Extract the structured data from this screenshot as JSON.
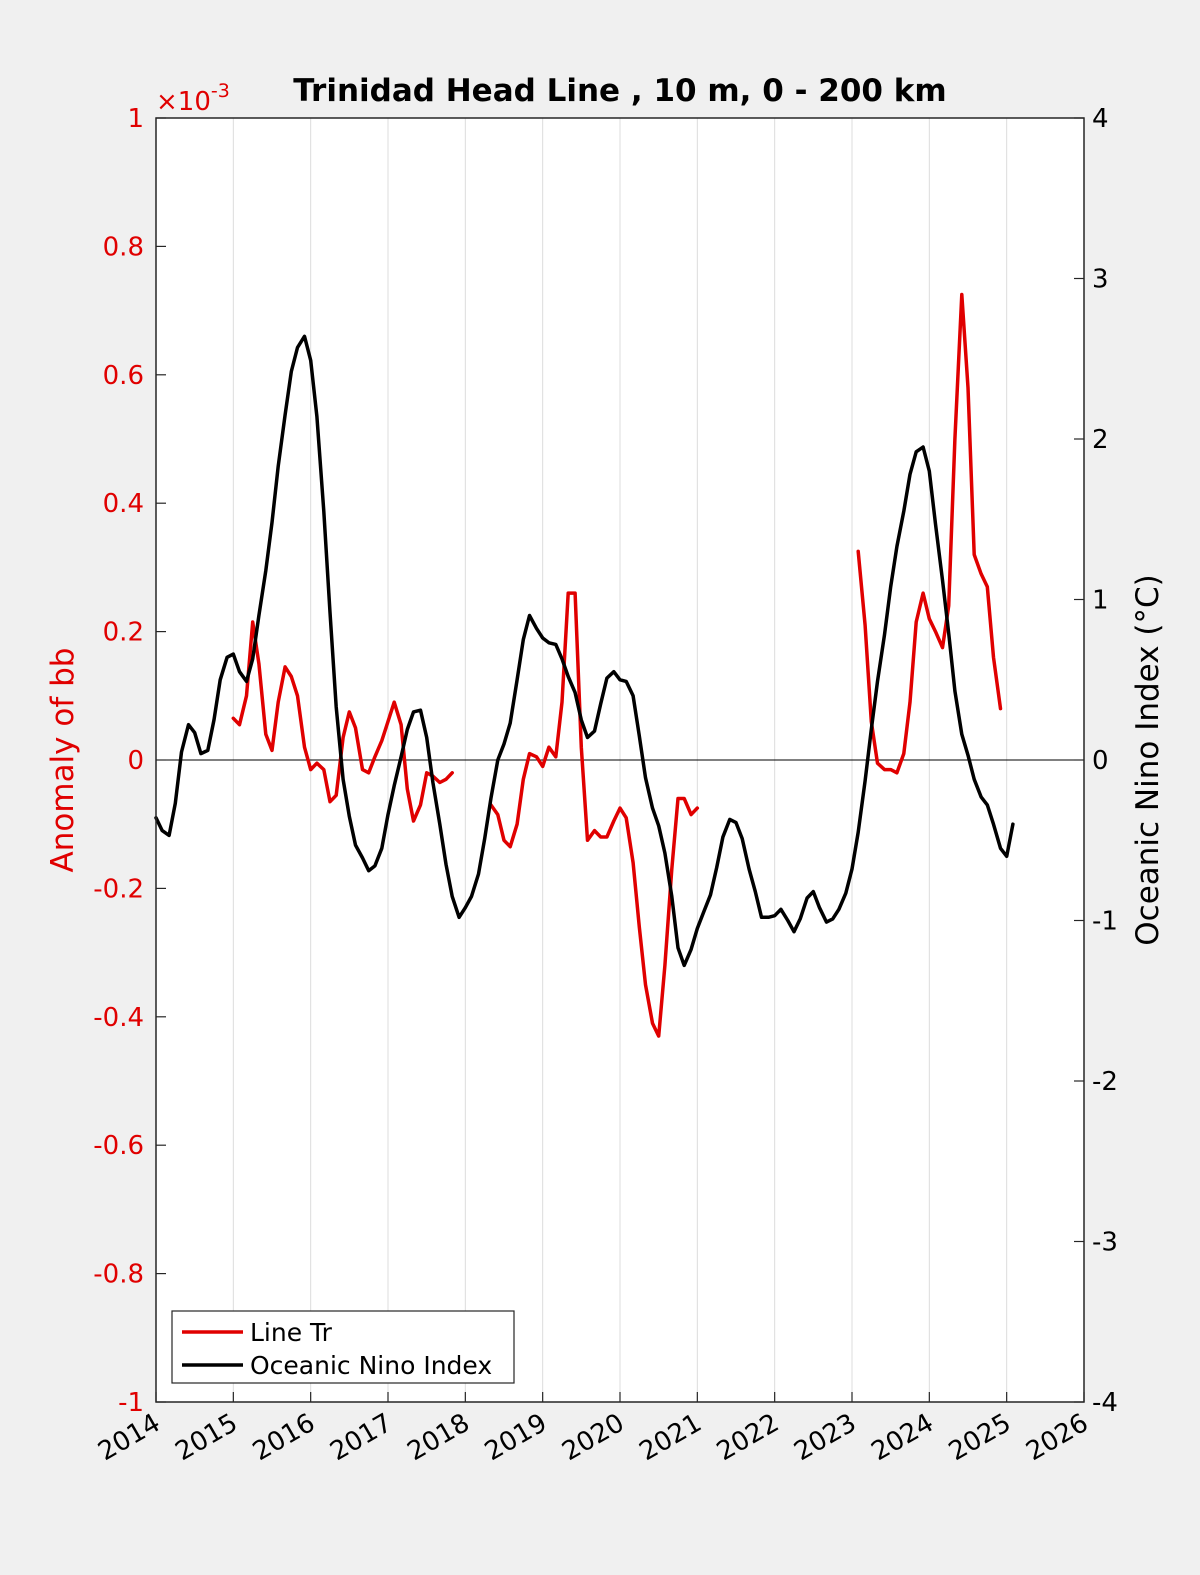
{
  "chart_data": {
    "type": "line",
    "title": "Trinidad Head Line , 10 m, 0 - 200 km",
    "ylabel_left": "Anomaly of bb",
    "ylabel_right": "Oceanic Nino Index (°C)",
    "left_exponent_base": "×10",
    "left_exponent_power": "-3",
    "xlim": [
      2014,
      2026
    ],
    "ylim_left": [
      -1,
      1
    ],
    "ylim_right": [
      -4,
      4
    ],
    "x_ticks": [
      "2014",
      "2015",
      "2016",
      "2017",
      "2018",
      "2019",
      "2020",
      "2021",
      "2022",
      "2023",
      "2024",
      "2025",
      "2026"
    ],
    "y_ticks_left": [
      "1",
      "0.8",
      "0.6",
      "0.4",
      "0.2",
      "0",
      "-0.2",
      "-0.4",
      "-0.6",
      "-0.8",
      "-1"
    ],
    "y_ticks_right": [
      "4",
      "3",
      "2",
      "1",
      "0",
      "-1",
      "-2",
      "-3",
      "-4"
    ],
    "grid": "vertical",
    "legend_position": "bottom-left",
    "colors": {
      "line_tr": "#e00000",
      "oni": "#000000"
    },
    "series": [
      {
        "name": "Line Tr",
        "axis": "left",
        "segments": [
          [
            [
              2015.0,
              0.065
            ],
            [
              2015.08,
              0.055
            ],
            [
              2015.17,
              0.1
            ],
            [
              2015.25,
              0.215
            ],
            [
              2015.33,
              0.15
            ],
            [
              2015.42,
              0.04
            ],
            [
              2015.5,
              0.015
            ],
            [
              2015.58,
              0.09
            ],
            [
              2015.67,
              0.145
            ],
            [
              2015.75,
              0.13
            ],
            [
              2015.83,
              0.1
            ],
            [
              2015.92,
              0.02
            ],
            [
              2016.0,
              -0.015
            ],
            [
              2016.08,
              -0.005
            ],
            [
              2016.17,
              -0.015
            ],
            [
              2016.25,
              -0.065
            ],
            [
              2016.33,
              -0.055
            ],
            [
              2016.42,
              0.035
            ],
            [
              2016.5,
              0.075
            ],
            [
              2016.58,
              0.05
            ],
            [
              2016.67,
              -0.015
            ],
            [
              2016.75,
              -0.02
            ],
            [
              2016.83,
              0.005
            ],
            [
              2016.92,
              0.03
            ],
            [
              2017.0,
              0.06
            ],
            [
              2017.08,
              0.09
            ],
            [
              2017.17,
              0.055
            ],
            [
              2017.25,
              -0.045
            ],
            [
              2017.33,
              -0.095
            ],
            [
              2017.42,
              -0.07
            ],
            [
              2017.5,
              -0.02
            ],
            [
              2017.58,
              -0.025
            ],
            [
              2017.67,
              -0.035
            ],
            [
              2017.75,
              -0.03
            ],
            [
              2017.83,
              -0.02
            ]
          ],
          [
            [
              2018.33,
              -0.07
            ],
            [
              2018.42,
              -0.085
            ],
            [
              2018.5,
              -0.125
            ],
            [
              2018.58,
              -0.135
            ],
            [
              2018.67,
              -0.1
            ],
            [
              2018.75,
              -0.03
            ],
            [
              2018.83,
              0.01
            ],
            [
              2018.92,
              0.005
            ],
            [
              2019.0,
              -0.01
            ],
            [
              2019.08,
              0.02
            ],
            [
              2019.17,
              0.005
            ],
            [
              2019.25,
              0.09
            ],
            [
              2019.33,
              0.26
            ],
            [
              2019.42,
              0.26
            ],
            [
              2019.5,
              0.02
            ],
            [
              2019.58,
              -0.125
            ],
            [
              2019.67,
              -0.11
            ],
            [
              2019.75,
              -0.12
            ],
            [
              2019.83,
              -0.12
            ],
            [
              2019.92,
              -0.095
            ],
            [
              2020.0,
              -0.075
            ],
            [
              2020.08,
              -0.09
            ],
            [
              2020.17,
              -0.16
            ],
            [
              2020.25,
              -0.26
            ],
            [
              2020.33,
              -0.35
            ],
            [
              2020.42,
              -0.41
            ],
            [
              2020.5,
              -0.43
            ],
            [
              2020.58,
              -0.32
            ],
            [
              2020.67,
              -0.17
            ],
            [
              2020.75,
              -0.06
            ],
            [
              2020.83,
              -0.06
            ],
            [
              2020.92,
              -0.085
            ],
            [
              2021.0,
              -0.075
            ]
          ],
          [
            [
              2023.08,
              0.325
            ],
            [
              2023.17,
              0.21
            ],
            [
              2023.25,
              0.06
            ],
            [
              2023.33,
              -0.005
            ],
            [
              2023.42,
              -0.015
            ],
            [
              2023.5,
              -0.015
            ],
            [
              2023.58,
              -0.02
            ],
            [
              2023.67,
              0.01
            ],
            [
              2023.75,
              0.09
            ],
            [
              2023.83,
              0.215
            ],
            [
              2023.92,
              0.26
            ],
            [
              2024.0,
              0.22
            ],
            [
              2024.08,
              0.2
            ],
            [
              2024.17,
              0.175
            ],
            [
              2024.25,
              0.24
            ],
            [
              2024.33,
              0.5
            ],
            [
              2024.42,
              0.725
            ],
            [
              2024.5,
              0.58
            ],
            [
              2024.58,
              0.32
            ],
            [
              2024.67,
              0.29
            ],
            [
              2024.75,
              0.27
            ],
            [
              2024.83,
              0.16
            ],
            [
              2024.92,
              0.08
            ]
          ]
        ]
      },
      {
        "name": "Oceanic Nino Index",
        "axis": "right",
        "segments": [
          [
            [
              2014.0,
              -0.36
            ],
            [
              2014.08,
              -0.44
            ],
            [
              2014.17,
              -0.47
            ],
            [
              2014.25,
              -0.27
            ],
            [
              2014.33,
              0.05
            ],
            [
              2014.42,
              0.22
            ],
            [
              2014.5,
              0.17
            ],
            [
              2014.58,
              0.04
            ],
            [
              2014.67,
              0.06
            ],
            [
              2014.75,
              0.25
            ],
            [
              2014.83,
              0.5
            ],
            [
              2014.92,
              0.64
            ],
            [
              2015.0,
              0.66
            ],
            [
              2015.08,
              0.55
            ],
            [
              2015.17,
              0.49
            ],
            [
              2015.25,
              0.63
            ],
            [
              2015.33,
              0.9
            ],
            [
              2015.42,
              1.18
            ],
            [
              2015.5,
              1.48
            ],
            [
              2015.58,
              1.83
            ],
            [
              2015.67,
              2.15
            ],
            [
              2015.75,
              2.42
            ],
            [
              2015.83,
              2.57
            ],
            [
              2015.92,
              2.64
            ],
            [
              2016.0,
              2.49
            ],
            [
              2016.08,
              2.14
            ],
            [
              2016.17,
              1.55
            ],
            [
              2016.25,
              0.92
            ],
            [
              2016.33,
              0.33
            ],
            [
              2016.42,
              -0.12
            ],
            [
              2016.5,
              -0.35
            ],
            [
              2016.58,
              -0.53
            ],
            [
              2016.67,
              -0.61
            ],
            [
              2016.75,
              -0.69
            ],
            [
              2016.83,
              -0.66
            ],
            [
              2016.92,
              -0.55
            ],
            [
              2017.0,
              -0.34
            ],
            [
              2017.08,
              -0.16
            ],
            [
              2017.17,
              0.02
            ],
            [
              2017.25,
              0.19
            ],
            [
              2017.33,
              0.3
            ],
            [
              2017.42,
              0.31
            ],
            [
              2017.5,
              0.14
            ],
            [
              2017.58,
              -0.14
            ],
            [
              2017.67,
              -0.4
            ],
            [
              2017.75,
              -0.65
            ],
            [
              2017.83,
              -0.85
            ],
            [
              2017.92,
              -0.98
            ],
            [
              2018.0,
              -0.92
            ],
            [
              2018.08,
              -0.85
            ],
            [
              2018.17,
              -0.71
            ],
            [
              2018.25,
              -0.49
            ],
            [
              2018.33,
              -0.24
            ],
            [
              2018.42,
              0.0
            ],
            [
              2018.5,
              0.1
            ],
            [
              2018.58,
              0.23
            ],
            [
              2018.67,
              0.5
            ],
            [
              2018.75,
              0.75
            ],
            [
              2018.83,
              0.9
            ],
            [
              2018.92,
              0.82
            ],
            [
              2019.0,
              0.76
            ],
            [
              2019.08,
              0.73
            ],
            [
              2019.17,
              0.72
            ],
            [
              2019.25,
              0.63
            ],
            [
              2019.33,
              0.52
            ],
            [
              2019.42,
              0.42
            ],
            [
              2019.5,
              0.25
            ],
            [
              2019.58,
              0.14
            ],
            [
              2019.67,
              0.18
            ],
            [
              2019.75,
              0.35
            ],
            [
              2019.83,
              0.51
            ],
            [
              2019.92,
              0.55
            ],
            [
              2020.0,
              0.5
            ],
            [
              2020.08,
              0.49
            ],
            [
              2020.17,
              0.4
            ],
            [
              2020.25,
              0.15
            ],
            [
              2020.33,
              -0.11
            ],
            [
              2020.42,
              -0.3
            ],
            [
              2020.5,
              -0.41
            ],
            [
              2020.58,
              -0.58
            ],
            [
              2020.67,
              -0.85
            ],
            [
              2020.75,
              -1.17
            ],
            [
              2020.83,
              -1.28
            ],
            [
              2020.92,
              -1.18
            ],
            [
              2021.0,
              -1.05
            ],
            [
              2021.08,
              -0.95
            ],
            [
              2021.17,
              -0.84
            ],
            [
              2021.25,
              -0.67
            ],
            [
              2021.33,
              -0.48
            ],
            [
              2021.42,
              -0.37
            ],
            [
              2021.5,
              -0.39
            ],
            [
              2021.58,
              -0.49
            ],
            [
              2021.67,
              -0.68
            ],
            [
              2021.75,
              -0.82
            ],
            [
              2021.83,
              -0.98
            ],
            [
              2021.92,
              -0.98
            ],
            [
              2022.0,
              -0.97
            ],
            [
              2022.08,
              -0.93
            ],
            [
              2022.17,
              -1.0
            ],
            [
              2022.25,
              -1.07
            ],
            [
              2022.33,
              -0.99
            ],
            [
              2022.42,
              -0.86
            ],
            [
              2022.5,
              -0.82
            ],
            [
              2022.58,
              -0.92
            ],
            [
              2022.67,
              -1.01
            ],
            [
              2022.75,
              -0.99
            ],
            [
              2022.83,
              -0.93
            ],
            [
              2022.92,
              -0.83
            ],
            [
              2023.0,
              -0.68
            ],
            [
              2023.08,
              -0.45
            ],
            [
              2023.17,
              -0.13
            ],
            [
              2023.25,
              0.19
            ],
            [
              2023.33,
              0.49
            ],
            [
              2023.42,
              0.78
            ],
            [
              2023.5,
              1.08
            ],
            [
              2023.58,
              1.33
            ],
            [
              2023.67,
              1.55
            ],
            [
              2023.75,
              1.78
            ],
            [
              2023.83,
              1.92
            ],
            [
              2023.92,
              1.95
            ],
            [
              2024.0,
              1.8
            ],
            [
              2024.08,
              1.47
            ],
            [
              2024.17,
              1.12
            ],
            [
              2024.25,
              0.79
            ],
            [
              2024.33,
              0.43
            ],
            [
              2024.42,
              0.16
            ],
            [
              2024.5,
              0.03
            ],
            [
              2024.58,
              -0.12
            ],
            [
              2024.67,
              -0.23
            ],
            [
              2024.75,
              -0.28
            ],
            [
              2024.83,
              -0.4
            ],
            [
              2024.92,
              -0.55
            ],
            [
              2025.0,
              -0.6
            ],
            [
              2025.08,
              -0.4
            ]
          ]
        ]
      }
    ]
  }
}
